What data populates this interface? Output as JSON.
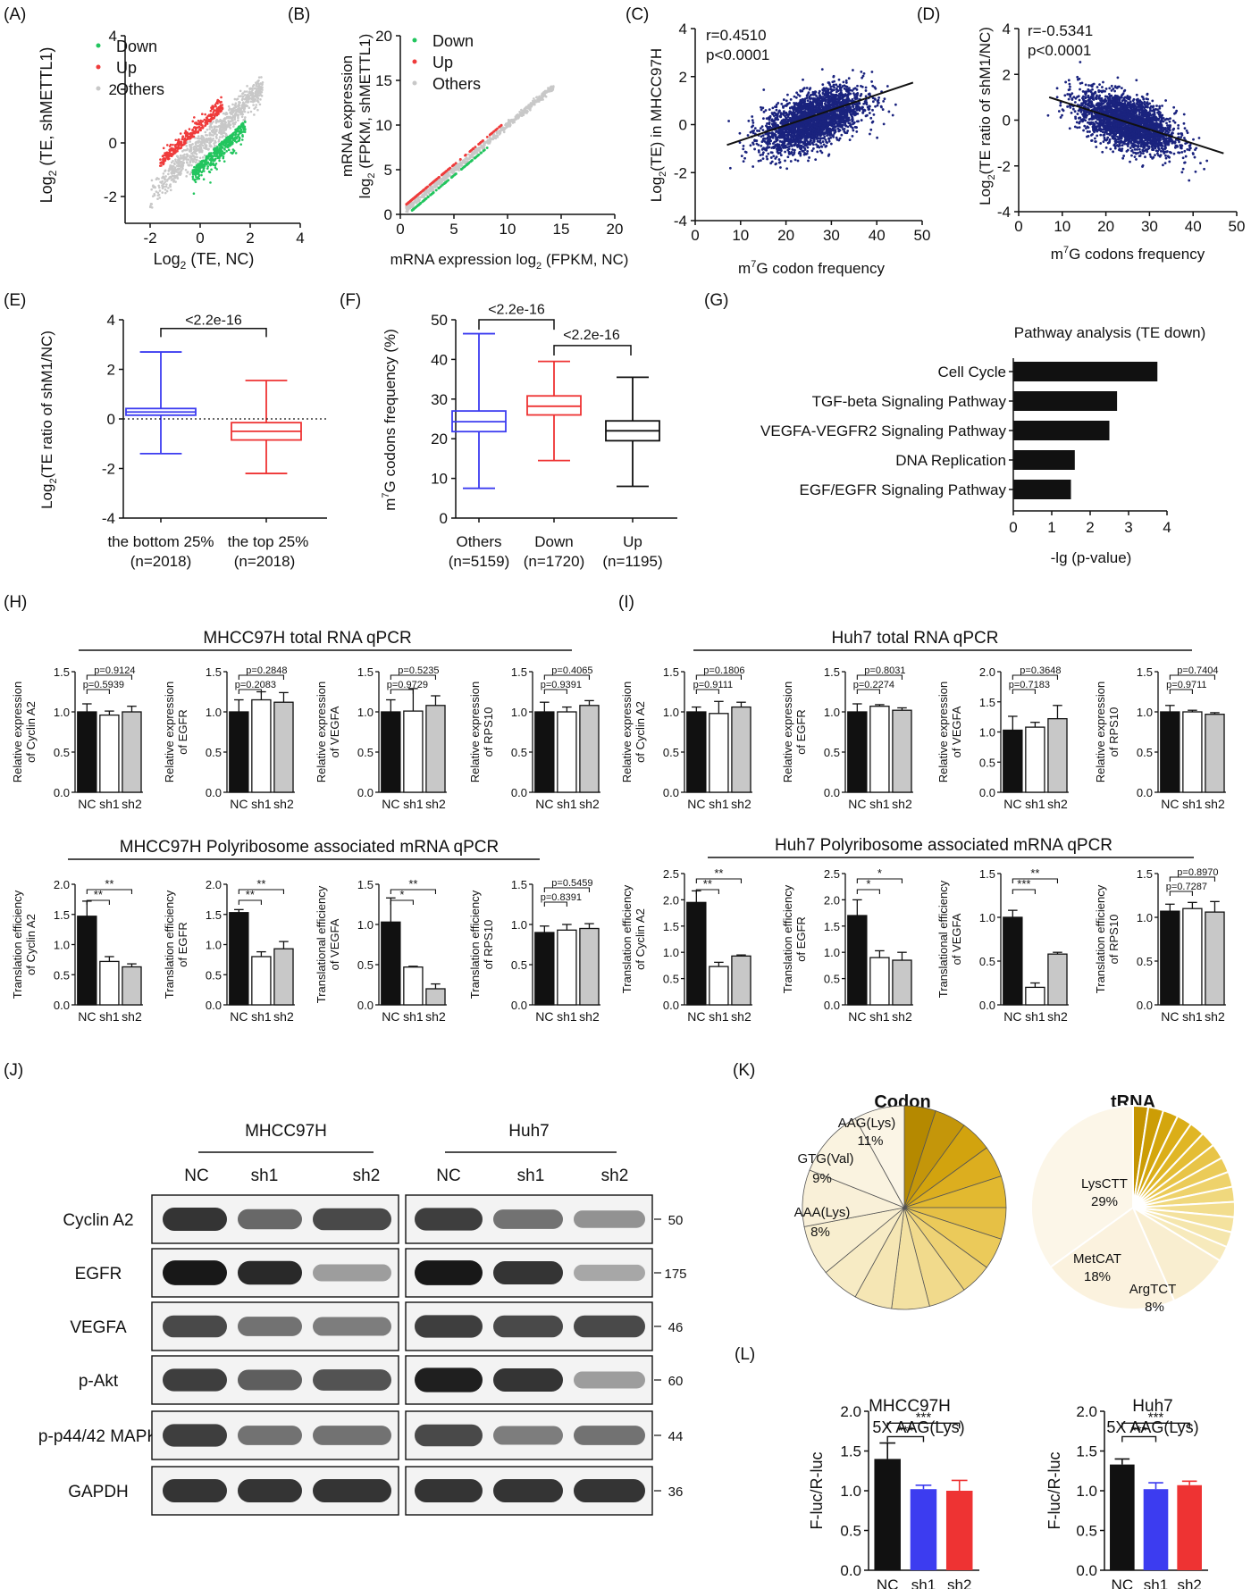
{
  "colors": {
    "down": "#22c55e",
    "up": "#ef3b3b",
    "others": "#c8c8c8",
    "scatter": "#1a237e",
    "blue": "#3c3cf0",
    "red": "#ee3333",
    "black": "#111111",
    "gray": "#c8c8c8"
  },
  "panelA": {
    "tag": "(A)",
    "xlabel": "Log",
    "xlabel_sub": "2",
    "xlabel_rest": " (TE, NC)",
    "ylabel": "Log2 (TE, shMETTL1)",
    "xticks": [
      -2,
      0,
      2,
      4
    ],
    "yticks": [
      -2,
      0,
      2,
      4
    ],
    "legend": [
      "Down",
      "Up",
      "Others"
    ]
  },
  "panelB": {
    "tag": "(B)",
    "xlabel": "mRNA expression log2 (FPKM, NC)",
    "ylabel1": "mRNA expression",
    "ylabel2": "log2 (FPKM, shMETTL1)",
    "xticks": [
      0,
      5,
      10,
      15,
      20
    ],
    "yticks": [
      0,
      5,
      10,
      15,
      20
    ],
    "legend": [
      "Down",
      "Up",
      "Others"
    ]
  },
  "panelC": {
    "tag": "(C)",
    "r": "r=0.4510",
    "p": "p<0.0001",
    "xlabel": "m7G codon frequency",
    "ylabel": "Log2(TE) in MHCC97H",
    "xticks": [
      0,
      10,
      20,
      30,
      40,
      50
    ],
    "yticks": [
      -4,
      -2,
      0,
      2,
      4
    ]
  },
  "panelD": {
    "tag": "(D)",
    "r": "r=-0.5341",
    "p": "p<0.0001",
    "xlabel": "m7G codons frequency",
    "ylabel": "Log2(TE ratio of shM1/NC)",
    "xticks": [
      0,
      10,
      20,
      30,
      40,
      50
    ],
    "yticks": [
      -4,
      -2,
      0,
      2,
      4
    ]
  },
  "panelE": {
    "tag": "(E)",
    "ylabel": "Log2(TE ratio of shM1/NC)",
    "yticks": [
      -4,
      -2,
      0,
      2,
      4
    ],
    "pval": "<2.2e-16",
    "cat1": "the bottom 25%",
    "n1": "(n=2018)",
    "cat2": "the top 25%",
    "n2": "(n=2018)"
  },
  "panelF": {
    "tag": "(F)",
    "ylabel": "m7G codons frequency (%)",
    "yticks": [
      0,
      10,
      20,
      30,
      40,
      50
    ],
    "p1": "<2.2e-16",
    "p2": "<2.2e-16",
    "cats": [
      "Others",
      "Down",
      "Up"
    ],
    "ns": [
      "(n=5159)",
      "(n=1720)",
      "(n=1195)"
    ]
  },
  "panelG": {
    "tag": "(G)",
    "title": "Pathway analysis (TE down)",
    "xlabel": "-lg (p-value)",
    "xticks": [
      0,
      1,
      2,
      3,
      4
    ]
  },
  "panelH": {
    "tag": "(H)",
    "title1": "MHCC97H total RNA qPCR",
    "title2": "MHCC97H Polyribosome associated mRNA qPCR"
  },
  "panelI": {
    "tag": "(I)",
    "title1": "Huh7 total RNA qPCR",
    "title2": "Huh7 Polyribosome associated mRNA qPCR"
  },
  "bar_labels": [
    "NC",
    "sh1",
    "sh2"
  ],
  "panelJ": {
    "tag": "(J)",
    "cell1": "MHCC97H",
    "cell2": "Huh7",
    "lanes": [
      "NC",
      "sh1",
      "sh2"
    ],
    "proteins": [
      "Cyclin A2",
      "EGFR",
      "VEGFA",
      "p-Akt",
      "p-p44/42 MAPK",
      "GAPDH"
    ],
    "mw": [
      "50",
      "175",
      "46",
      "60",
      "44",
      "36"
    ]
  },
  "panelK": {
    "tag": "(K)",
    "codon_title": "Codon",
    "trna_title": "tRNA",
    "codon_labels": [
      {
        "name": "AAG(Lys)",
        "pct": "11%"
      },
      {
        "name": "GTG(Val)",
        "pct": "9%"
      },
      {
        "name": "AAA(Lys)",
        "pct": "8%"
      }
    ],
    "trna_labels": [
      {
        "name": "LysCTT",
        "pct": "29%"
      },
      {
        "name": "MetCAT",
        "pct": "18%"
      },
      {
        "name": "ArgTCT",
        "pct": "8%"
      }
    ]
  },
  "panelL": {
    "tag": "(L)",
    "t1": "MHCC97H",
    "t2": "Huh7",
    "sub": "5X AAG(Lys)",
    "ylabel": "F-luc/R-luc",
    "yticks": [
      0.0,
      0.5,
      1.0,
      1.5,
      2.0
    ]
  },
  "chart_data": [
    {
      "id": "A",
      "type": "scatter",
      "title": "",
      "xlabel": "Log2 (TE, NC)",
      "ylabel": "Log2 (TE, shMETTL1)",
      "xlim": [
        -3,
        4
      ],
      "ylim": [
        -3,
        4
      ],
      "series": [
        {
          "name": "Down"
        },
        {
          "name": "Up"
        },
        {
          "name": "Others"
        }
      ]
    },
    {
      "id": "B",
      "type": "scatter",
      "title": "",
      "xlabel": "mRNA expression log2 (FPKM, NC)",
      "ylabel": "mRNA expression log2 (FPKM, shMETTL1)",
      "xlim": [
        0,
        20
      ],
      "ylim": [
        0,
        20
      ],
      "series": [
        {
          "name": "Down"
        },
        {
          "name": "Up"
        },
        {
          "name": "Others"
        }
      ]
    },
    {
      "id": "C",
      "type": "scatter",
      "xlabel": "m7G codon frequency",
      "ylabel": "Log2(TE) in MHCC97H",
      "xlim": [
        0,
        50
      ],
      "ylim": [
        -4,
        4
      ],
      "annotation": [
        "r=0.4510",
        "p<0.0001"
      ],
      "trend": [
        [
          7,
          -0.85
        ],
        [
          48,
          1.75
        ]
      ]
    },
    {
      "id": "D",
      "type": "scatter",
      "xlabel": "m7G codons frequency",
      "ylabel": "Log2(TE ratio of shM1/NC)",
      "xlim": [
        0,
        50
      ],
      "ylim": [
        -4,
        4
      ],
      "annotation": [
        "r=-0.5341",
        "p<0.0001"
      ],
      "trend": [
        [
          7,
          1.0
        ],
        [
          47,
          -1.45
        ]
      ]
    },
    {
      "id": "E",
      "type": "box",
      "ylabel": "Log2(TE ratio of shM1/NC)",
      "ylim": [
        -4,
        4
      ],
      "categories": [
        "the bottom 25% (n=2018)",
        "the top 25% (n=2018)"
      ],
      "boxes": [
        {
          "min": -1.4,
          "q1": 0.15,
          "median": 0.28,
          "q3": 0.42,
          "max": 2.7
        },
        {
          "min": -2.2,
          "q1": -0.85,
          "median": -0.5,
          "q3": -0.15,
          "max": 1.55
        }
      ]
    },
    {
      "id": "F",
      "type": "box",
      "ylabel": "m7G codons frequency (%)",
      "ylim": [
        0,
        50
      ],
      "categories": [
        "Others (n=5159)",
        "Down (n=1720)",
        "Up (n=1195)"
      ],
      "boxes": [
        {
          "min": 7.5,
          "q1": 21.8,
          "median": 24.3,
          "q3": 27.0,
          "max": 46.5
        },
        {
          "min": 14.5,
          "q1": 26.0,
          "median": 28.2,
          "q3": 30.8,
          "max": 39.5
        },
        {
          "min": 8.0,
          "q1": 19.5,
          "median": 22.0,
          "q3": 24.5,
          "max": 35.5
        }
      ]
    },
    {
      "id": "G",
      "type": "bar",
      "orientation": "horizontal",
      "title": "Pathway analysis (TE down)",
      "xlabel": "-lg (p-value)",
      "xlim": [
        0,
        4
      ],
      "categories": [
        "Cell Cycle",
        "TGF-beta Signaling Pathway",
        "VEGFA-VEGFR2 Signaling Pathway",
        "DNA Replication",
        "EGF/EGFR Signaling Pathway"
      ],
      "values": [
        3.75,
        2.7,
        2.5,
        1.6,
        1.5
      ]
    },
    {
      "id": "H1",
      "type": "bar",
      "ylabel": [
        "Relative expression",
        "of Cyclin A2"
      ],
      "ylim": [
        0,
        1.5
      ],
      "yticks": [
        0.0,
        0.5,
        1.0,
        1.5
      ],
      "values": [
        1.0,
        0.96,
        1.0
      ],
      "errors": [
        0.1,
        0.05,
        0.07
      ],
      "sig": [
        {
          "a": 0,
          "b": 1,
          "text": "p=0.5939"
        },
        {
          "a": 0,
          "b": 2,
          "text": "p=0.9124"
        }
      ]
    },
    {
      "id": "H2",
      "type": "bar",
      "ylabel": [
        "Relative expression",
        "of EGFR"
      ],
      "ylim": [
        0,
        1.5
      ],
      "yticks": [
        0.0,
        0.5,
        1.0,
        1.5
      ],
      "values": [
        1.0,
        1.15,
        1.12
      ],
      "errors": [
        0.15,
        0.1,
        0.12
      ],
      "sig": [
        {
          "a": 0,
          "b": 1,
          "text": "p=0.2083"
        },
        {
          "a": 0,
          "b": 2,
          "text": "p=0.2848"
        }
      ]
    },
    {
      "id": "H3",
      "type": "bar",
      "ylabel": [
        "Relative expression",
        "of VEGFA"
      ],
      "ylim": [
        0,
        1.5
      ],
      "yticks": [
        0.0,
        0.5,
        1.0,
        1.5
      ],
      "values": [
        1.0,
        1.01,
        1.08
      ],
      "errors": [
        0.15,
        0.28,
        0.12
      ],
      "sig": [
        {
          "a": 0,
          "b": 1,
          "text": "p=0.9729"
        },
        {
          "a": 0,
          "b": 2,
          "text": "p=0.5235"
        }
      ]
    },
    {
      "id": "H4",
      "type": "bar",
      "ylabel": [
        "Relative expression",
        "of RPS10"
      ],
      "ylim": [
        0,
        1.5
      ],
      "yticks": [
        0.0,
        0.5,
        1.0,
        1.5
      ],
      "values": [
        1.0,
        1.0,
        1.08
      ],
      "errors": [
        0.12,
        0.06,
        0.06
      ],
      "sig": [
        {
          "a": 0,
          "b": 1,
          "text": "p=0.9391"
        },
        {
          "a": 0,
          "b": 2,
          "text": "p=0.4065"
        }
      ]
    },
    {
      "id": "H5",
      "type": "bar",
      "ylabel": [
        "Translation efficiency",
        "of Cyclin A2"
      ],
      "ylim": [
        0,
        2.0
      ],
      "yticks": [
        0.0,
        0.5,
        1.0,
        1.5,
        2.0
      ],
      "values": [
        1.47,
        0.72,
        0.63
      ],
      "errors": [
        0.25,
        0.08,
        0.05
      ],
      "sig": [
        {
          "a": 0,
          "b": 1,
          "text": "**"
        },
        {
          "a": 0,
          "b": 2,
          "text": "**"
        }
      ]
    },
    {
      "id": "H6",
      "type": "bar",
      "ylabel": [
        "Translation efficiency",
        "of EGFR"
      ],
      "ylim": [
        0,
        2.0
      ],
      "yticks": [
        0.0,
        0.5,
        1.0,
        1.5,
        2.0
      ],
      "values": [
        1.53,
        0.8,
        0.93
      ],
      "errors": [
        0.05,
        0.08,
        0.12
      ],
      "sig": [
        {
          "a": 0,
          "b": 1,
          "text": "**"
        },
        {
          "a": 0,
          "b": 2,
          "text": "**"
        }
      ]
    },
    {
      "id": "H7",
      "type": "bar",
      "ylabel": [
        "Translational efficiency",
        "of VEGFA"
      ],
      "ylim": [
        0,
        1.5
      ],
      "yticks": [
        0.0,
        0.5,
        1.0,
        1.5
      ],
      "values": [
        1.03,
        0.47,
        0.2
      ],
      "errors": [
        0.3,
        0.01,
        0.06
      ],
      "sig": [
        {
          "a": 0,
          "b": 1,
          "text": "*"
        },
        {
          "a": 0,
          "b": 2,
          "text": "**"
        }
      ]
    },
    {
      "id": "H8",
      "type": "bar",
      "ylabel": [
        "Translation efficiency",
        "of RPS10"
      ],
      "ylim": [
        0,
        1.5
      ],
      "yticks": [
        0.0,
        0.5,
        1.0,
        1.5
      ],
      "values": [
        0.9,
        0.93,
        0.95
      ],
      "errors": [
        0.08,
        0.07,
        0.06
      ],
      "sig": [
        {
          "a": 0,
          "b": 1,
          "text": "p=0.8391"
        },
        {
          "a": 0,
          "b": 2,
          "text": "p=0.5459"
        }
      ]
    },
    {
      "id": "I1",
      "type": "bar",
      "ylabel": [
        "Relative expression",
        "of Cyclin A2"
      ],
      "ylim": [
        0,
        1.5
      ],
      "yticks": [
        0.0,
        0.5,
        1.0,
        1.5
      ],
      "values": [
        1.0,
        0.98,
        1.06
      ],
      "errors": [
        0.06,
        0.15,
        0.06
      ],
      "sig": [
        {
          "a": 0,
          "b": 1,
          "text": "p=0.9111"
        },
        {
          "a": 0,
          "b": 2,
          "text": "p=0.1806"
        }
      ]
    },
    {
      "id": "I2",
      "type": "bar",
      "ylabel": [
        "Relative expression",
        "of EGFR"
      ],
      "ylim": [
        0,
        1.5
      ],
      "yticks": [
        0.0,
        0.5,
        1.0,
        1.5
      ],
      "values": [
        1.0,
        1.07,
        1.02
      ],
      "errors": [
        0.1,
        0.02,
        0.03
      ],
      "sig": [
        {
          "a": 0,
          "b": 1,
          "text": "p=0.2274"
        },
        {
          "a": 0,
          "b": 2,
          "text": "p=0.8031"
        }
      ]
    },
    {
      "id": "I3",
      "type": "bar",
      "ylabel": [
        "Relative expression",
        "of VEGFA"
      ],
      "ylim": [
        0,
        2.0
      ],
      "yticks": [
        0.0,
        0.5,
        1.0,
        1.5,
        2.0
      ],
      "values": [
        1.03,
        1.08,
        1.22
      ],
      "errors": [
        0.23,
        0.08,
        0.22
      ],
      "sig": [
        {
          "a": 0,
          "b": 1,
          "text": "p=0.7183"
        },
        {
          "a": 0,
          "b": 2,
          "text": "p=0.3648"
        }
      ]
    },
    {
      "id": "I4",
      "type": "bar",
      "ylabel": [
        "Relative expression",
        "of RPS10"
      ],
      "ylim": [
        0,
        1.5
      ],
      "yticks": [
        0.0,
        0.5,
        1.0,
        1.5
      ],
      "values": [
        1.0,
        1.0,
        0.97
      ],
      "errors": [
        0.08,
        0.02,
        0.02
      ],
      "sig": [
        {
          "a": 0,
          "b": 1,
          "text": "p=0.9711"
        },
        {
          "a": 0,
          "b": 2,
          "text": "p=0.7404"
        }
      ]
    },
    {
      "id": "I5",
      "type": "bar",
      "ylabel": [
        "Translation efficiency",
        "of Cyclin A2"
      ],
      "ylim": [
        0,
        2.5
      ],
      "yticks": [
        0.0,
        0.5,
        1.0,
        1.5,
        2.0,
        2.5
      ],
      "values": [
        1.95,
        0.73,
        0.93
      ],
      "errors": [
        0.22,
        0.08,
        0.02
      ],
      "sig": [
        {
          "a": 0,
          "b": 1,
          "text": "**"
        },
        {
          "a": 0,
          "b": 2,
          "text": "**"
        }
      ]
    },
    {
      "id": "I6",
      "type": "bar",
      "ylabel": [
        "Translation efficiency",
        "of EGFR"
      ],
      "ylim": [
        0,
        2.5
      ],
      "yticks": [
        0.0,
        0.5,
        1.0,
        1.5,
        2.0,
        2.5
      ],
      "values": [
        1.7,
        0.9,
        0.85
      ],
      "errors": [
        0.3,
        0.13,
        0.15
      ],
      "sig": [
        {
          "a": 0,
          "b": 1,
          "text": "*"
        },
        {
          "a": 0,
          "b": 2,
          "text": "*"
        }
      ]
    },
    {
      "id": "I7",
      "type": "bar",
      "ylabel": [
        "Translational efficiency",
        "of VEGFA"
      ],
      "ylim": [
        0,
        1.5
      ],
      "yticks": [
        0.0,
        0.5,
        1.0,
        1.5
      ],
      "values": [
        1.0,
        0.2,
        0.58
      ],
      "errors": [
        0.08,
        0.05,
        0.02
      ],
      "sig": [
        {
          "a": 0,
          "b": 1,
          "text": "***"
        },
        {
          "a": 0,
          "b": 2,
          "text": "**"
        }
      ]
    },
    {
      "id": "I8",
      "type": "bar",
      "ylabel": [
        "Translation efficiency",
        "of RPS10"
      ],
      "ylim": [
        0,
        1.5
      ],
      "yticks": [
        0.0,
        0.5,
        1.0,
        1.5
      ],
      "values": [
        1.07,
        1.1,
        1.06
      ],
      "errors": [
        0.08,
        0.07,
        0.12
      ],
      "sig": [
        {
          "a": 0,
          "b": 1,
          "text": "p=0.7287"
        },
        {
          "a": 0,
          "b": 2,
          "text": "p=0.8970"
        }
      ]
    },
    {
      "id": "K1",
      "type": "pie",
      "title": "Codon",
      "labelled": [
        {
          "name": "AAG(Lys)",
          "value": 11
        },
        {
          "name": "GTG(Val)",
          "value": 9
        },
        {
          "name": "AAA(Lys)",
          "value": 8
        }
      ]
    },
    {
      "id": "K2",
      "type": "pie",
      "title": "tRNA",
      "labelled": [
        {
          "name": "LysCTT",
          "value": 29
        },
        {
          "name": "MetCAT",
          "value": 18
        },
        {
          "name": "ArgTCT",
          "value": 8
        }
      ]
    },
    {
      "id": "L1",
      "type": "bar",
      "title": "MHCC97H",
      "subtitle": "5X AAG(Lys)",
      "ylabel": "F-luc/R-luc",
      "ylim": [
        0,
        2.0
      ],
      "categories": [
        "NC",
        "sh1",
        "sh2"
      ],
      "values": [
        1.4,
        1.02,
        1.0
      ],
      "errors": [
        0.2,
        0.05,
        0.13
      ],
      "sig": [
        {
          "a": 0,
          "b": 1,
          "text": "***"
        },
        {
          "a": 0,
          "b": 2,
          "text": "***"
        }
      ]
    },
    {
      "id": "L2",
      "type": "bar",
      "title": "Huh7",
      "subtitle": "5X AAG(Lys)",
      "ylabel": "F-luc/R-luc",
      "ylim": [
        0,
        2.0
      ],
      "categories": [
        "NC",
        "sh1",
        "sh2"
      ],
      "values": [
        1.33,
        1.02,
        1.07
      ],
      "errors": [
        0.07,
        0.08,
        0.05
      ],
      "sig": [
        {
          "a": 0,
          "b": 1,
          "text": "***"
        },
        {
          "a": 0,
          "b": 2,
          "text": "***"
        }
      ]
    }
  ]
}
